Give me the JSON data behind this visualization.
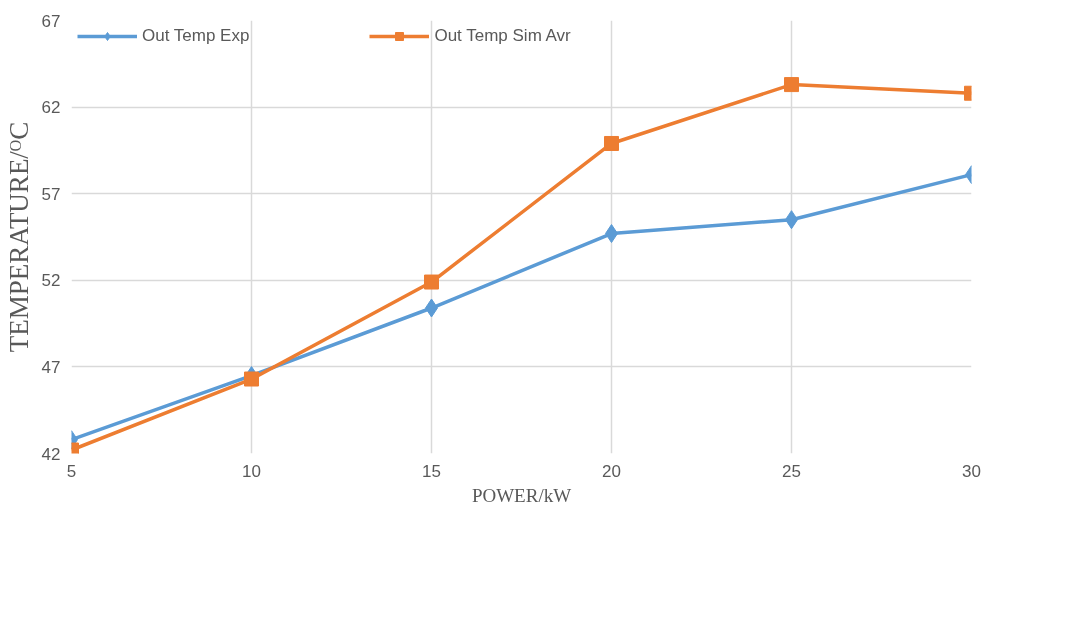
{
  "chart_data": {
    "type": "line",
    "xlabel": "POWER/kW",
    "ylabel": "TEMPERATURE/ᴼC",
    "x": [
      5,
      10,
      15,
      20,
      25,
      30
    ],
    "series": [
      {
        "name": "Out Temp Exp",
        "color": "#5b9bd5",
        "marker": "diamond",
        "values": [
          42.8,
          46.5,
          50.4,
          54.7,
          55.5,
          58.1
        ]
      },
      {
        "name": "Out Temp Sim Avr",
        "color": "#ed7d31",
        "marker": "square",
        "values": [
          42.2,
          46.3,
          51.9,
          59.9,
          63.3,
          62.8
        ]
      }
    ],
    "xlim": [
      5,
      30
    ],
    "xticks": [
      5,
      10,
      15,
      20,
      25,
      30
    ],
    "ylim": [
      42,
      67
    ],
    "yticks": [
      42,
      47,
      52,
      57,
      62,
      67
    ],
    "grid": true,
    "legend": "top",
    "line_style": "solid"
  }
}
